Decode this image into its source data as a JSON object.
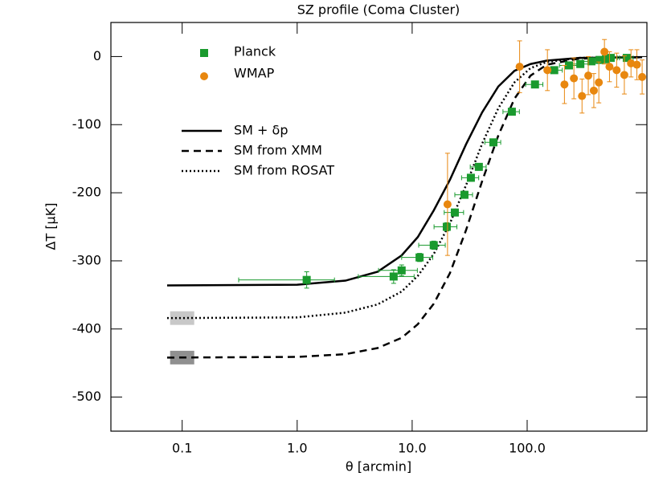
{
  "chart_data": {
    "type": "scatter",
    "title": "SZ profile (Coma Cluster)",
    "x_label": "θ [arcmin]",
    "y_label": "ΔT [μK]",
    "x_log": true,
    "xlim": [
      0.024,
      1100
    ],
    "ylim": [
      -550,
      50
    ],
    "xticks": [
      0.1,
      {
        "value": 1,
        "label": "1.0"
      },
      {
        "value": 10,
        "label": "10.0"
      },
      {
        "value": 100,
        "label": "100.0"
      }
    ],
    "yticks": [
      0,
      -100,
      -200,
      -300,
      -400,
      -500
    ],
    "legend": "upper left",
    "series": [
      {
        "name": "Planck",
        "marker": "square",
        "color": "#1a9a2e",
        "x": [
          1.21,
          6.9,
          8.1,
          11.6,
          15.4,
          20.0,
          23.5,
          28.5,
          32.4,
          38.0,
          50.9,
          73.6,
          117,
          172,
          231,
          290,
          362,
          426,
          484,
          533,
          735
        ],
        "values": [
          -328,
          -323,
          -314,
          -295,
          -277,
          -250,
          -229,
          -203,
          -178,
          -162,
          -126,
          -81,
          -41,
          -20,
          -13,
          -11,
          -7,
          -5,
          -4,
          -2,
          -2
        ],
        "xerr": [
          0.9,
          3.5,
          3,
          3.5,
          4,
          4.5,
          4.5,
          5,
          5.5,
          6,
          8,
          12,
          20,
          30,
          40,
          50,
          60,
          65,
          70,
          75,
          100
        ],
        "yerr": [
          12,
          10,
          8,
          6,
          6,
          6,
          5,
          5,
          5,
          5,
          5,
          5,
          5,
          4,
          4,
          4,
          4,
          4,
          4,
          4,
          4
        ]
      },
      {
        "name": "WMAP",
        "marker": "circle",
        "color": "#e8870f",
        "x": [
          20.3,
          86,
          150,
          211,
          255,
          300,
          340,
          380,
          420,
          470,
          520,
          600,
          700,
          800,
          900,
          1000
        ],
        "values": [
          -217,
          -15,
          -20,
          -41,
          -32,
          -58,
          -28,
          -50,
          -38,
          7,
          -15,
          -20,
          -27,
          -10,
          -12,
          -30
        ],
        "yerr": [
          75,
          38,
          30,
          28,
          30,
          25,
          28,
          25,
          30,
          18,
          22,
          25,
          28,
          20,
          22,
          25
        ]
      }
    ],
    "lines": [
      {
        "name": "SM + δp",
        "dash": "solid",
        "color": "#000000",
        "x": [
          0.074,
          1,
          2.63,
          5.0,
          8.1,
          11.2,
          15.4,
          21.3,
          29.4,
          40.6,
          56.1,
          77.5,
          107,
          148,
          283,
          1000
        ],
        "values": [
          -336,
          -335,
          -329,
          -316,
          -292,
          -265,
          -226,
          -181,
          -129,
          -82,
          -44,
          -21,
          -11,
          -6,
          -2,
          -1
        ]
      },
      {
        "name": "SM from XMM",
        "dash": "dashed",
        "color": "#000000",
        "x": [
          0.074,
          1,
          2.63,
          5.0,
          8.1,
          11.2,
          15.4,
          21.3,
          29.4,
          40.6,
          56.1,
          77.5,
          107,
          148,
          283,
          1000
        ],
        "values": [
          -442,
          -441,
          -437,
          -428,
          -413,
          -393,
          -363,
          -318,
          -255,
          -183,
          -116,
          -62,
          -28,
          -12,
          -3,
          -1
        ]
      },
      {
        "name": "SM from ROSAT",
        "dash": "dotted",
        "color": "#000000",
        "x": [
          0.074,
          1,
          2.63,
          5.0,
          8.1,
          11.2,
          15.4,
          21.3,
          29.4,
          40.6,
          56.1,
          77.5,
          107,
          148,
          283,
          1000
        ],
        "values": [
          -384,
          -383,
          -376,
          -364,
          -345,
          -322,
          -290,
          -245,
          -189,
          -128,
          -76,
          -38,
          -17,
          -8,
          -2,
          -1
        ]
      }
    ],
    "error_boxes": [
      {
        "x": 0.1,
        "value": -384,
        "error": 10,
        "color": "#c8c8c8"
      },
      {
        "x": 0.1,
        "value": -442,
        "error": 10,
        "color": "#909090"
      }
    ]
  }
}
